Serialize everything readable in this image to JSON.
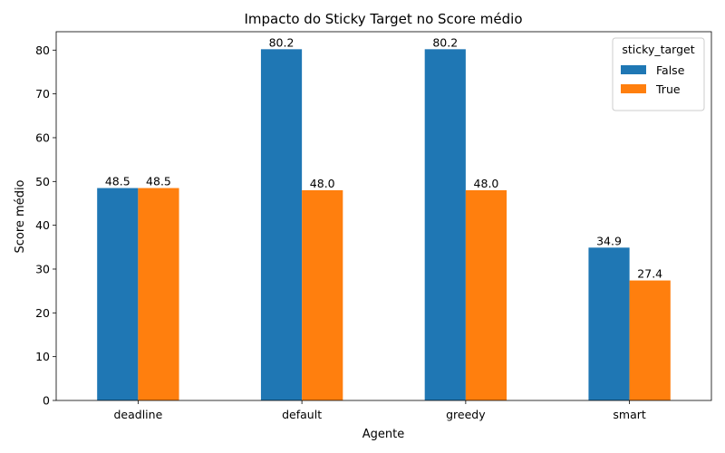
{
  "chart_data": {
    "type": "bar",
    "title": "Impacto do Sticky Target no Score médio",
    "xlabel": "Agente",
    "ylabel": "Score médio",
    "categories": [
      "deadline",
      "default",
      "greedy",
      "smart"
    ],
    "ylim": [
      0,
      84.2
    ],
    "yticks": [
      0,
      10,
      20,
      30,
      40,
      50,
      60,
      70,
      80
    ],
    "legend_title": "sticky_target",
    "legend_position": "top-right",
    "series": [
      {
        "name": "False",
        "color": "#1f77b4",
        "values": [
          48.5,
          80.2,
          80.2,
          34.9
        ],
        "labels": [
          "48.5",
          "80.2",
          "80.2",
          "34.9"
        ]
      },
      {
        "name": "True",
        "color": "#ff7f0e",
        "values": [
          48.5,
          48.0,
          48.0,
          27.4
        ],
        "labels": [
          "48.5",
          "48.0",
          "48.0",
          "27.4"
        ]
      }
    ]
  }
}
